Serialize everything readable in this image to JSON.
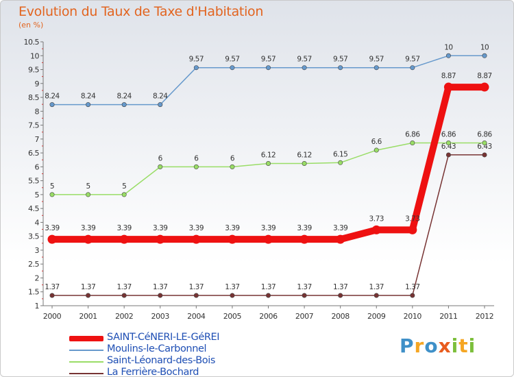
{
  "title": "Evolution du Taux de Taxe d'Habitation",
  "subtitle": "(en %)",
  "logo": "Proxiti",
  "chart_data": {
    "type": "line",
    "title": "Evolution du Taux de Taxe d'Habitation",
    "subtitle": "(en %)",
    "x": [
      "2000",
      "2001",
      "2002",
      "2003",
      "2004",
      "2005",
      "2006",
      "2007",
      "2008",
      "2009",
      "2010",
      "2011",
      "2012"
    ],
    "ylim": [
      1,
      10.5
    ],
    "yticks": [
      "1",
      "1.5",
      "2",
      "2.5",
      "3",
      "3.5",
      "4",
      "4.5",
      "5",
      "5.5",
      "6",
      "6.5",
      "7",
      "7.5",
      "8",
      "8.5",
      "9",
      "9.5",
      "10",
      "10.5"
    ],
    "grid": false,
    "legend_position": "bottom-left",
    "series": [
      {
        "name": "SAINT-CéNERI-LE-GéREI",
        "color": "#ee1111",
        "values": [
          3.39,
          3.39,
          3.39,
          3.39,
          3.39,
          3.39,
          3.39,
          3.39,
          3.39,
          3.73,
          3.73,
          8.87,
          8.87
        ],
        "labels": [
          "3.39",
          "3.39",
          "3.39",
          "3.39",
          "3.39",
          "3.39",
          "3.39",
          "3.39",
          "3.39",
          "3.73",
          "3.73",
          "8.87",
          "8.87"
        ]
      },
      {
        "name": "Moulins-le-Carbonnel",
        "color": "#6699cc",
        "values": [
          8.24,
          8.24,
          8.24,
          8.24,
          9.57,
          9.57,
          9.57,
          9.57,
          9.57,
          9.57,
          9.57,
          10,
          10
        ],
        "labels": [
          "8.24",
          "8.24",
          "8.24",
          "8.24",
          "9.57",
          "9.57",
          "9.57",
          "9.57",
          "9.57",
          "9.57",
          "9.57",
          "10",
          "10"
        ]
      },
      {
        "name": "Saint-Léonard-des-Bois",
        "color": "#99dd66",
        "values": [
          5,
          5,
          5,
          6,
          6,
          6,
          6.12,
          6.12,
          6.15,
          6.6,
          6.86,
          6.86,
          6.86
        ],
        "labels": [
          "5",
          "5",
          "5",
          "6",
          "6",
          "6",
          "6.12",
          "6.12",
          "6.15",
          "6.6",
          "6.86",
          "6.86",
          "6.86"
        ]
      },
      {
        "name": "La Ferrière-Bochard",
        "color": "#773333",
        "values": [
          1.37,
          1.37,
          1.37,
          1.37,
          1.37,
          1.37,
          1.37,
          1.37,
          1.37,
          1.37,
          1.37,
          6.43,
          6.43
        ],
        "labels": [
          "1.37",
          "1.37",
          "1.37",
          "1.37",
          "1.37",
          "1.37",
          "1.37",
          "1.37",
          "1.37",
          "1.37",
          "1.37",
          "6.43",
          "6.43"
        ]
      }
    ]
  }
}
